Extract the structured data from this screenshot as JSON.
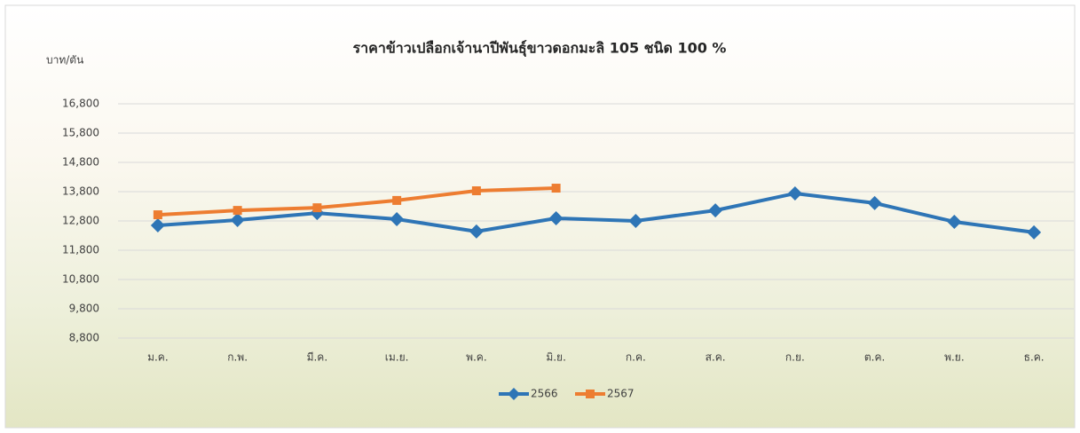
{
  "chart_data": {
    "type": "line",
    "title": "ราคาข้าวเปลือกเจ้านาปีพันธุ์ขาวดอกมะลิ 105 ชนิด 100 %",
    "y_label": "บาท/ตัน",
    "categories": [
      "ม.ค.",
      "ก.พ.",
      "มี.ค.",
      "เม.ย.",
      "พ.ค.",
      "มิ.ย.",
      "ก.ค.",
      "ส.ค.",
      "ก.ย.",
      "ต.ค.",
      "พ.ย.",
      "ธ.ค."
    ],
    "series": [
      {
        "name": "2566",
        "color": "#2e75b6",
        "marker": "diamond",
        "values": [
          12650,
          12830,
          13070,
          12860,
          12440,
          12890,
          12800,
          13160,
          13740,
          13410,
          12770,
          12410
        ]
      },
      {
        "name": "2567",
        "color": "#ed7d31",
        "marker": "square",
        "values": [
          13010,
          13160,
          13250,
          13500,
          13830,
          13920,
          null,
          null,
          null,
          null,
          null,
          null
        ]
      }
    ],
    "ylim": [
      8800,
      16800
    ],
    "yticks": [
      {
        "value": 8800,
        "label": "8,800"
      },
      {
        "value": 9800,
        "label": "9,800"
      },
      {
        "value": 10800,
        "label": "10,800"
      },
      {
        "value": 11800,
        "label": "11,800"
      },
      {
        "value": 12800,
        "label": "12,800"
      },
      {
        "value": 13800,
        "label": "13,800"
      },
      {
        "value": 14800,
        "label": "14,800"
      },
      {
        "value": 15800,
        "label": "15,800"
      },
      {
        "value": 16800,
        "label": "16,800"
      }
    ],
    "grid": true,
    "legend": "bottom"
  }
}
